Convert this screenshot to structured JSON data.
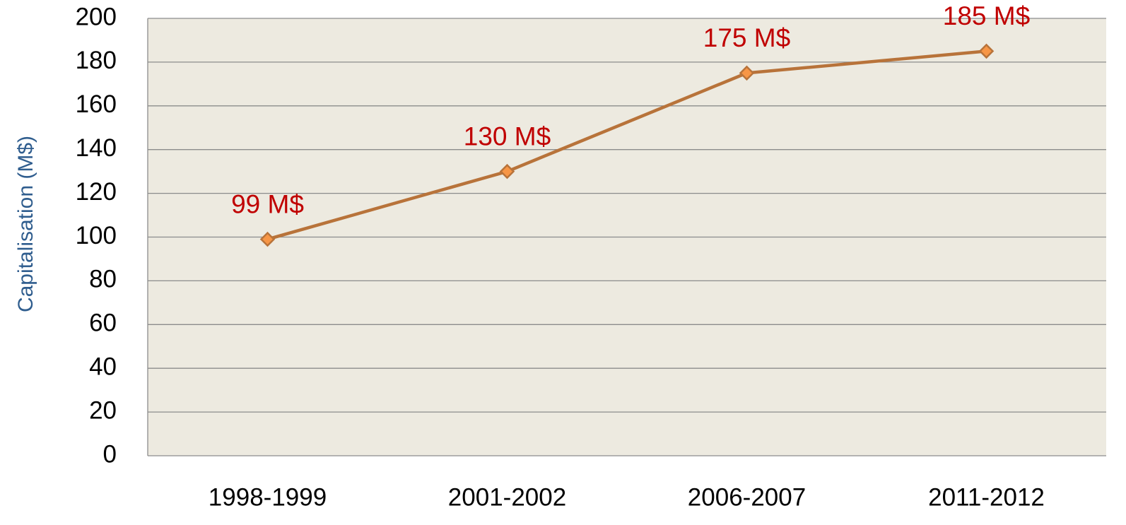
{
  "chart_data": {
    "type": "line",
    "y_label": "Capitalisation (M$)",
    "categories": [
      "1998-1999",
      "2001-2002",
      "2006-2007",
      "2011-2012"
    ],
    "series": [
      {
        "name": "Capitalisation",
        "color": "#b8733a",
        "marker_color": "#f79646",
        "values": [
          99,
          130,
          175,
          185
        ],
        "value_labels": [
          "99 M$",
          "130 M$",
          "175 M$",
          "185 M$"
        ]
      }
    ],
    "ylim": [
      0,
      200
    ],
    "yticks": [
      0,
      20,
      40,
      60,
      80,
      100,
      120,
      140,
      160,
      180,
      200
    ],
    "grid": true
  }
}
